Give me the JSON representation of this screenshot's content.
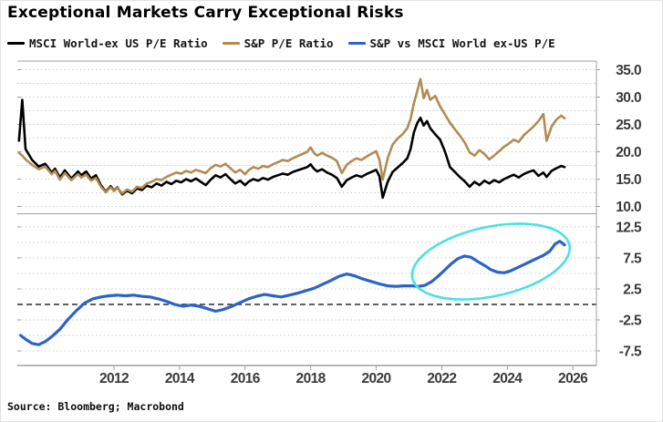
{
  "title": "Exceptional Markets Carry Exceptional Risks",
  "source": "Source: Bloomberg; Macrobond",
  "legend": [
    {
      "label": "MSCI World-ex US P/E Ratio",
      "color": "#000000"
    },
    {
      "label": "S&P P/E Ratio",
      "color": "#b28b52"
    },
    {
      "label": "S&P vs MSCI World ex-US P/E",
      "color": "#2c63c8"
    }
  ],
  "colors": {
    "msci_line": "#000000",
    "sp_line": "#b28b52",
    "spread_line": "#2c63c8",
    "highlight_ellipse": "#4be0e6",
    "gridline": "#c6cad1",
    "axis": "#9aa0a6",
    "zero_line": "#4a4a4a",
    "tick_label": "#3a3a3a",
    "background": "#ffffff"
  },
  "x_axis": {
    "ticks": [
      2012,
      2014,
      2016,
      2018,
      2020,
      2022,
      2024,
      2026
    ],
    "range": [
      2009.05,
      2026.72
    ]
  },
  "chart_data": [
    {
      "type": "line",
      "panel": "top",
      "ylim": [
        8.75,
        36.25
      ],
      "yticks": [
        35,
        30,
        25,
        20,
        15,
        10
      ],
      "ytick_labels": [
        "35.0",
        "30.0",
        "25.0",
        "20.0",
        "15.0",
        "10.0"
      ],
      "gridlines": [
        10,
        12.5,
        15,
        17.5,
        20,
        22.5,
        25,
        27.5,
        30,
        32.5,
        35
      ],
      "x": [
        2009.1,
        2009.2,
        2009.3,
        2009.5,
        2009.7,
        2009.9,
        2010.1,
        2010.2,
        2010.35,
        2010.5,
        2010.7,
        2010.9,
        2011.0,
        2011.15,
        2011.3,
        2011.45,
        2011.6,
        2011.75,
        2011.9,
        2012.0,
        2012.1,
        2012.25,
        2012.4,
        2012.55,
        2012.7,
        2012.85,
        2013.0,
        2013.15,
        2013.3,
        2013.45,
        2013.6,
        2013.75,
        2013.9,
        2014.05,
        2014.2,
        2014.35,
        2014.5,
        2014.65,
        2014.8,
        2014.95,
        2015.1,
        2015.25,
        2015.4,
        2015.55,
        2015.7,
        2015.85,
        2016.0,
        2016.1,
        2016.25,
        2016.4,
        2016.55,
        2016.7,
        2016.85,
        2017.0,
        2017.15,
        2017.3,
        2017.45,
        2017.6,
        2017.75,
        2017.9,
        2018.0,
        2018.1,
        2018.2,
        2018.35,
        2018.5,
        2018.65,
        2018.8,
        2018.95,
        2019.1,
        2019.25,
        2019.4,
        2019.55,
        2019.7,
        2019.85,
        2020.0,
        2020.1,
        2020.2,
        2020.35,
        2020.5,
        2020.65,
        2020.8,
        2020.95,
        2021.05,
        2021.15,
        2021.25,
        2021.35,
        2021.45,
        2021.55,
        2021.65,
        2021.8,
        2021.95,
        2022.1,
        2022.25,
        2022.4,
        2022.55,
        2022.7,
        2022.85,
        2023.0,
        2023.15,
        2023.3,
        2023.45,
        2023.6,
        2023.75,
        2023.9,
        2024.05,
        2024.2,
        2024.35,
        2024.5,
        2024.65,
        2024.8,
        2024.95,
        2025.1,
        2025.2,
        2025.35,
        2025.5,
        2025.65,
        2025.75
      ],
      "series": [
        {
          "name": "MSCI World-ex US P/E Ratio",
          "color": "#000000",
          "data_name": "msci-line",
          "y": [
            22,
            29.5,
            20.5,
            18.5,
            17.3,
            17.8,
            16.2,
            16.9,
            15.3,
            16.6,
            15.1,
            16.4,
            15.7,
            16.4,
            15.1,
            15.7,
            13.9,
            12.7,
            13.7,
            12.9,
            13.5,
            12.2,
            12.9,
            12.4,
            13.3,
            13.0,
            13.8,
            13.5,
            14.2,
            13.8,
            14.5,
            14.1,
            14.7,
            14.4,
            15.0,
            14.6,
            15.1,
            14.5,
            13.9,
            14.9,
            15.7,
            15.3,
            15.9,
            15.0,
            14.2,
            14.7,
            13.9,
            14.5,
            15.0,
            14.7,
            15.2,
            14.9,
            15.4,
            15.7,
            16.0,
            15.8,
            16.3,
            16.6,
            16.9,
            17.2,
            17.7,
            16.9,
            16.4,
            16.8,
            16.2,
            15.8,
            15.2,
            13.6,
            14.8,
            15.3,
            15.7,
            15.4,
            15.9,
            16.3,
            16.7,
            15.5,
            11.6,
            14.5,
            16.3,
            17.1,
            17.9,
            18.8,
            20.5,
            23.5,
            25.2,
            26.2,
            24.8,
            25.6,
            24.3,
            23.2,
            22.2,
            20.0,
            17.2,
            16.3,
            15.4,
            14.6,
            13.6,
            14.5,
            13.9,
            14.7,
            14.2,
            14.8,
            14.4,
            15.0,
            15.4,
            15.8,
            15.3,
            15.9,
            16.3,
            16.6,
            15.6,
            16.2,
            15.4,
            16.5,
            17.0,
            17.4,
            17.2
          ]
        },
        {
          "name": "S&P P/E Ratio",
          "color": "#b28b52",
          "data_name": "sp-line",
          "y": [
            19.8,
            19.3,
            18.6,
            17.6,
            16.8,
            17.3,
            15.9,
            16.5,
            14.9,
            16.1,
            14.8,
            15.9,
            15.3,
            15.8,
            14.7,
            15.2,
            13.6,
            12.6,
            13.5,
            12.8,
            13.4,
            12.4,
            13.1,
            12.7,
            13.6,
            13.4,
            14.2,
            14.5,
            15.0,
            14.8,
            15.4,
            15.8,
            16.2,
            16.0,
            16.5,
            16.2,
            16.7,
            16.4,
            16.1,
            17.0,
            17.6,
            17.3,
            17.8,
            17.0,
            16.2,
            16.7,
            15.9,
            16.6,
            17.2,
            16.9,
            17.4,
            17.2,
            17.7,
            18.1,
            18.5,
            18.3,
            18.8,
            19.2,
            19.6,
            20.0,
            20.8,
            19.8,
            19.3,
            19.8,
            19.3,
            18.9,
            18.3,
            16.1,
            17.6,
            18.3,
            18.8,
            18.5,
            19.1,
            19.6,
            20.1,
            18.5,
            14.9,
            18.8,
            21.3,
            22.4,
            23.2,
            24.3,
            26.0,
            28.8,
            31.0,
            33.3,
            29.8,
            31.3,
            29.5,
            30.2,
            28.3,
            26.8,
            25.3,
            24.1,
            23.0,
            21.7,
            19.9,
            19.3,
            20.3,
            19.6,
            18.6,
            19.3,
            20.1,
            20.9,
            21.5,
            22.2,
            21.8,
            23.0,
            23.8,
            24.6,
            25.6,
            26.9,
            22.0,
            24.6,
            25.9,
            26.6,
            26.1
          ]
        }
      ]
    },
    {
      "type": "line",
      "panel": "bottom",
      "ylim": [
        -9.85,
        14.4
      ],
      "yticks": [
        12.5,
        7.5,
        2.5,
        -2.5,
        -7.5
      ],
      "ytick_labels": [
        "12.5",
        "7.5",
        "2.5",
        "-2.5",
        "-7.5"
      ],
      "gridlines": [
        -7.5,
        -5,
        -2.5,
        2.5,
        5,
        7.5,
        10,
        12.5
      ],
      "zero_line": 0,
      "series": [
        {
          "name": "S&P vs MSCI World ex-US P/E",
          "color": "#2c63c8",
          "data_name": "spread-line",
          "x": [
            2009.15,
            2009.3,
            2009.5,
            2009.7,
            2009.9,
            2010.1,
            2010.35,
            2010.6,
            2010.85,
            2011.1,
            2011.35,
            2011.6,
            2011.85,
            2012.1,
            2012.35,
            2012.6,
            2012.85,
            2013.1,
            2013.35,
            2013.6,
            2013.85,
            2014.1,
            2014.35,
            2014.6,
            2014.85,
            2015.1,
            2015.35,
            2015.6,
            2015.85,
            2016.1,
            2016.35,
            2016.6,
            2016.85,
            2017.1,
            2017.35,
            2017.6,
            2017.85,
            2018.1,
            2018.35,
            2018.6,
            2018.85,
            2019.1,
            2019.35,
            2019.6,
            2019.85,
            2020.1,
            2020.35,
            2020.6,
            2020.85,
            2021.1,
            2021.3,
            2021.5,
            2021.7,
            2021.9,
            2022.1,
            2022.3,
            2022.5,
            2022.7,
            2022.9,
            2023.1,
            2023.3,
            2023.5,
            2023.7,
            2023.9,
            2024.1,
            2024.3,
            2024.5,
            2024.7,
            2024.9,
            2025.1,
            2025.3,
            2025.45,
            2025.6,
            2025.75
          ],
          "y": [
            -5.0,
            -5.6,
            -6.3,
            -6.5,
            -6.0,
            -5.2,
            -4.0,
            -2.4,
            -1.0,
            0.2,
            0.9,
            1.2,
            1.4,
            1.5,
            1.4,
            1.5,
            1.3,
            1.2,
            0.9,
            0.5,
            0.0,
            -0.3,
            -0.1,
            -0.3,
            -0.7,
            -1.1,
            -0.8,
            -0.3,
            0.3,
            0.9,
            1.3,
            1.6,
            1.4,
            1.2,
            1.5,
            1.8,
            2.2,
            2.6,
            3.2,
            3.8,
            4.5,
            4.9,
            4.6,
            4.1,
            3.7,
            3.3,
            3.0,
            2.9,
            3.0,
            3.0,
            2.9,
            3.1,
            3.7,
            4.6,
            5.6,
            6.6,
            7.4,
            7.8,
            7.6,
            6.9,
            6.3,
            5.6,
            5.2,
            5.1,
            5.4,
            5.9,
            6.4,
            6.9,
            7.4,
            7.9,
            8.6,
            9.7,
            10.2,
            9.6
          ]
        }
      ],
      "annotation_ellipse": {
        "center_x": 2023.5,
        "center_y": 6.9,
        "rx_years": 2.45,
        "ry_units": 5.6,
        "rotation_deg": -12,
        "color": "#4be0e6"
      }
    }
  ]
}
